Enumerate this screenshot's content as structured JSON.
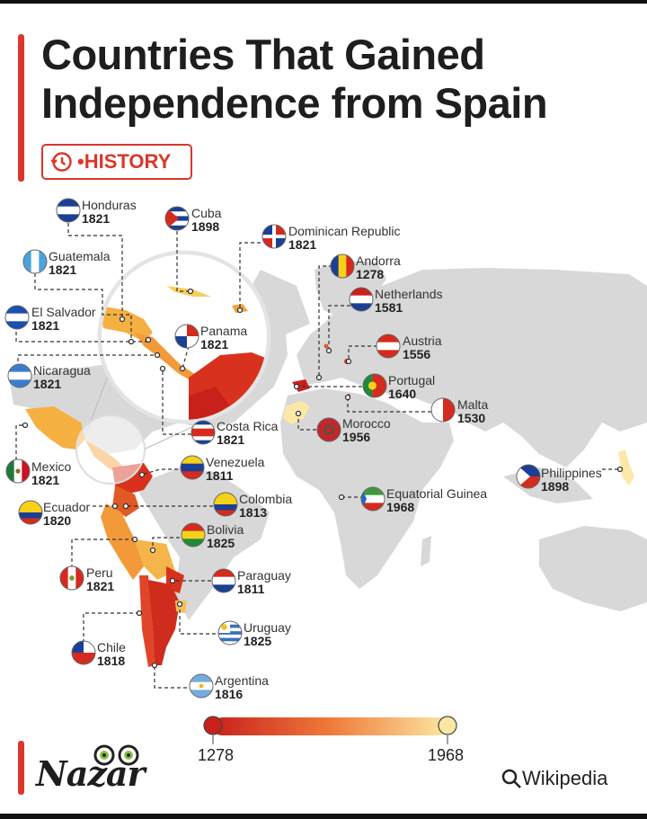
{
  "title": {
    "line1": "Countries That Gained",
    "line2": "Independence from Spain"
  },
  "tag": {
    "label": "•HISTORY",
    "icon": "history-icon"
  },
  "colors": {
    "accent": "#d9372b",
    "land": "#d6d6d6",
    "scale_low": "#c8211b",
    "scale_high": "#fbe7a1"
  },
  "countries": [
    {
      "name": "Honduras",
      "year": "1821"
    },
    {
      "name": "Cuba",
      "year": "1898"
    },
    {
      "name": "Dominican Republic",
      "year": "1821"
    },
    {
      "name": "Guatemala",
      "year": "1821"
    },
    {
      "name": "Andorra",
      "year": "1278"
    },
    {
      "name": "Netherlands",
      "year": "1581"
    },
    {
      "name": "El Salvador",
      "year": "1821"
    },
    {
      "name": "Panama",
      "year": "1821"
    },
    {
      "name": "Austria",
      "year": "1556"
    },
    {
      "name": "Nicaragua",
      "year": "1821"
    },
    {
      "name": "Portugal",
      "year": "1640"
    },
    {
      "name": "Malta",
      "year": "1530"
    },
    {
      "name": "Costa Rica",
      "year": "1821"
    },
    {
      "name": "Morocco",
      "year": "1956"
    },
    {
      "name": "Mexico",
      "year": "1821"
    },
    {
      "name": "Venezuela",
      "year": "1811"
    },
    {
      "name": "Philippines",
      "year": "1898"
    },
    {
      "name": "Equatorial Guinea",
      "year": "1968"
    },
    {
      "name": "Ecuador",
      "year": "1820"
    },
    {
      "name": "Colombia",
      "year": "1813"
    },
    {
      "name": "Bolivia",
      "year": "1825"
    },
    {
      "name": "Peru",
      "year": "1821"
    },
    {
      "name": "Paraguay",
      "year": "1811"
    },
    {
      "name": "Uruguay",
      "year": "1825"
    },
    {
      "name": "Chile",
      "year": "1818"
    },
    {
      "name": "Argentina",
      "year": "1816"
    }
  ],
  "legend": {
    "min": "1278",
    "max": "1968"
  },
  "logo": {
    "text": "Nazar"
  },
  "source": {
    "label": "Wikipedia",
    "icon": "search-icon"
  }
}
